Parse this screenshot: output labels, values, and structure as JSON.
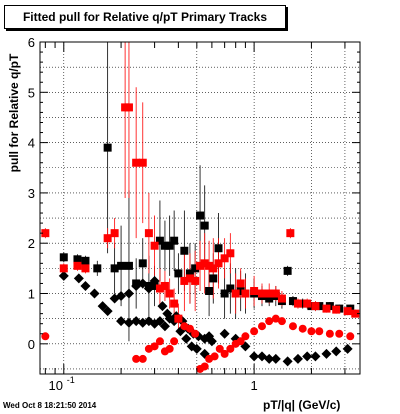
{
  "title": "Fitted pull for Relative q/pT  Primary Tracks",
  "footer": "Wed Oct  8 18:21:50 2014",
  "chart_data": {
    "type": "scatter",
    "title": "Fitted pull for Relative q/pT  Primary Tracks",
    "xlabel": "pT/|q| (GeV/c)",
    "ylabel": "pull for Relative q/pT",
    "x_scale": "log",
    "xlim": [
      0.075,
      3.6
    ],
    "ylim": [
      -0.6,
      6
    ],
    "x_tick_labels": [
      {
        "v": 0.1,
        "label": "10^-1"
      },
      {
        "v": 1,
        "label": "1"
      }
    ],
    "y_ticks": [
      0,
      1,
      2,
      3,
      4,
      5,
      6
    ],
    "grid": true,
    "colors": {
      "black_series": "#000000",
      "red_series": "#ff0000"
    },
    "series": [
      {
        "marker": "square",
        "color": "#000000",
        "points": [
          [
            0.1,
            1.72,
            0.1
          ],
          [
            0.118,
            1.68,
            0.1
          ],
          [
            0.13,
            1.65,
            0.1
          ],
          [
            0.15,
            1.5,
            0.15
          ],
          [
            0.17,
            3.9,
            2.1
          ],
          [
            0.185,
            1.5,
            0.5
          ],
          [
            0.2,
            1.55,
            0.8
          ],
          [
            0.22,
            1.55,
            1.5
          ],
          [
            0.24,
            1.2,
            0.5
          ],
          [
            0.26,
            1.6,
            0.5
          ],
          [
            0.28,
            1.15,
            0.6
          ],
          [
            0.3,
            1.15,
            0.4
          ],
          [
            0.32,
            2.05,
            0.8
          ],
          [
            0.34,
            1.95,
            0.5
          ],
          [
            0.36,
            1.95,
            0.6
          ],
          [
            0.38,
            2.05,
            0.6
          ],
          [
            0.4,
            1.4,
            0.4
          ],
          [
            0.43,
            1.85,
            0.8
          ],
          [
            0.46,
            1.4,
            0.6
          ],
          [
            0.49,
            1.5,
            0.5
          ],
          [
            0.52,
            2.55,
            1.0
          ],
          [
            0.55,
            2.35,
            0.8
          ],
          [
            0.58,
            1.05,
            0.5
          ],
          [
            0.61,
            1.3,
            0.5
          ],
          [
            0.65,
            1.9,
            0.7
          ],
          [
            0.7,
            1.0,
            0.5
          ],
          [
            0.75,
            1.1,
            0.5
          ],
          [
            0.8,
            1.0,
            0.5
          ],
          [
            0.85,
            1.05,
            0.4
          ],
          [
            0.9,
            1.0,
            0.4
          ],
          [
            1.0,
            1.0,
            0.3
          ],
          [
            1.1,
            0.95,
            0.2
          ],
          [
            1.2,
            0.9,
            0.15
          ],
          [
            1.3,
            0.95,
            0.2
          ],
          [
            1.4,
            0.85,
            0.15
          ],
          [
            1.5,
            1.45,
            0.1
          ],
          [
            1.6,
            0.85,
            0.1
          ],
          [
            1.8,
            0.8,
            0.1
          ],
          [
            2.0,
            0.75,
            0.08
          ],
          [
            2.2,
            0.75,
            0.08
          ],
          [
            2.5,
            0.75,
            0.08
          ],
          [
            2.8,
            0.7,
            0.08
          ],
          [
            3.2,
            0.7,
            0.08
          ]
        ]
      },
      {
        "marker": "diamond",
        "color": "#000000",
        "points": [
          [
            0.1,
            1.35,
            0.05
          ],
          [
            0.12,
            1.3,
            0.05
          ],
          [
            0.13,
            1.15,
            0.05
          ],
          [
            0.145,
            1.0,
            0.05
          ],
          [
            0.16,
            0.75,
            0.05
          ],
          [
            0.17,
            0.65,
            0.05
          ],
          [
            0.185,
            0.9,
            0.05
          ],
          [
            0.2,
            0.95,
            0.05
          ],
          [
            0.22,
            1.0,
            0.05
          ],
          [
            0.24,
            1.15,
            0.05
          ],
          [
            0.26,
            1.2,
            0.05
          ],
          [
            0.28,
            1.1,
            0.05
          ],
          [
            0.3,
            1.25,
            0.05
          ],
          [
            0.33,
            0.75,
            0.05
          ],
          [
            0.35,
            0.6,
            0.05
          ],
          [
            0.38,
            0.45,
            0.05
          ],
          [
            0.41,
            0.25,
            0.05
          ],
          [
            0.44,
            0.1,
            0.05
          ],
          [
            0.47,
            -0.05,
            0.05
          ],
          [
            0.5,
            -0.1,
            0.05
          ],
          [
            0.55,
            -0.2,
            0.05
          ],
          [
            0.6,
            0.05,
            0.05
          ],
          [
            0.7,
            0.2,
            0.05
          ],
          [
            0.8,
            0.1,
            0.05
          ],
          [
            0.9,
            -0.05,
            0.05
          ],
          [
            1.0,
            -0.25,
            0.05
          ],
          [
            1.1,
            -0.25,
            0.05
          ],
          [
            1.2,
            -0.3,
            0.05
          ],
          [
            1.3,
            -0.3,
            0.05
          ],
          [
            1.5,
            -0.35,
            0.05
          ],
          [
            1.7,
            -0.3,
            0.05
          ],
          [
            1.9,
            -0.25,
            0.05
          ],
          [
            2.1,
            -0.25,
            0.05
          ],
          [
            2.4,
            -0.2,
            0.05
          ],
          [
            2.7,
            -0.15,
            0.05
          ],
          [
            3.1,
            -0.1,
            0.05
          ]
        ]
      },
      {
        "marker": "diamond",
        "color": "#000000",
        "points": [
          [
            0.2,
            0.45,
            0.05
          ],
          [
            0.22,
            0.42,
            0.05
          ],
          [
            0.24,
            0.45,
            0.05
          ],
          [
            0.26,
            0.42,
            0.05
          ],
          [
            0.28,
            0.45,
            0.05
          ],
          [
            0.3,
            0.4,
            0.05
          ],
          [
            0.32,
            0.45,
            0.05
          ],
          [
            0.34,
            0.35,
            0.05
          ],
          [
            0.36,
            0.5,
            0.05
          ],
          [
            0.39,
            0.55,
            0.05
          ],
          [
            0.42,
            0.45,
            0.05
          ],
          [
            0.45,
            0.3,
            0.05
          ],
          [
            0.48,
            0.2,
            0.05
          ],
          [
            0.51,
            0.15,
            0.05
          ],
          [
            0.55,
            0.1,
            0.05
          ],
          [
            0.58,
            0.15,
            0.05
          ]
        ]
      },
      {
        "marker": "square",
        "color": "#ff0000",
        "points": [
          [
            0.08,
            2.2,
            0.1
          ],
          [
            0.1,
            1.5,
            0.1
          ],
          [
            0.118,
            1.55,
            0.1
          ],
          [
            0.13,
            1.5,
            0.1
          ],
          [
            0.17,
            2.1,
            0.2
          ],
          [
            0.185,
            2.2,
            0.3
          ],
          [
            0.21,
            4.7,
            1.8
          ],
          [
            0.22,
            4.7,
            1.8
          ],
          [
            0.24,
            3.6,
            1.5
          ],
          [
            0.26,
            3.6,
            1.2
          ],
          [
            0.28,
            2.2,
            0.8
          ],
          [
            0.3,
            1.95,
            0.6
          ],
          [
            0.32,
            1.1,
            0.4
          ],
          [
            0.34,
            1.15,
            0.3
          ],
          [
            0.36,
            1.0,
            0.3
          ],
          [
            0.38,
            0.8,
            0.3
          ],
          [
            0.4,
            0.5,
            0.3
          ],
          [
            0.43,
            1.25,
            0.6
          ],
          [
            0.46,
            1.3,
            0.5
          ],
          [
            0.49,
            1.25,
            0.6
          ],
          [
            0.52,
            1.55,
            0.5
          ],
          [
            0.55,
            1.6,
            0.6
          ],
          [
            0.58,
            1.55,
            0.5
          ],
          [
            0.61,
            1.5,
            0.6
          ],
          [
            0.65,
            1.6,
            0.5
          ],
          [
            0.7,
            1.7,
            0.4
          ],
          [
            0.75,
            1.8,
            0.4
          ],
          [
            0.8,
            1.0,
            0.4
          ],
          [
            0.85,
            1.2,
            0.3
          ],
          [
            0.9,
            1.0,
            0.3
          ],
          [
            1.0,
            1.05,
            0.3
          ],
          [
            1.1,
            1.0,
            0.2
          ],
          [
            1.2,
            1.0,
            0.2
          ],
          [
            1.3,
            1.0,
            0.15
          ],
          [
            1.4,
            0.9,
            0.15
          ],
          [
            1.55,
            2.2,
            0.1
          ],
          [
            1.7,
            0.8,
            0.1
          ],
          [
            1.9,
            0.8,
            0.1
          ],
          [
            2.1,
            0.75,
            0.1
          ],
          [
            2.4,
            0.7,
            0.08
          ],
          [
            2.7,
            0.68,
            0.08
          ],
          [
            3.1,
            0.65,
            0.08
          ],
          [
            3.4,
            0.6,
            0.08
          ]
        ]
      },
      {
        "marker": "circle",
        "color": "#ff0000",
        "points": [
          [
            0.08,
            0.15,
            0.05
          ],
          [
            0.24,
            -0.3,
            0.05
          ],
          [
            0.26,
            -0.3,
            0.05
          ],
          [
            0.28,
            -0.1,
            0.05
          ],
          [
            0.3,
            -0.05,
            0.05
          ],
          [
            0.32,
            0.05,
            0.05
          ],
          [
            0.34,
            -0.15,
            0.05
          ],
          [
            0.36,
            -0.1,
            0.05
          ],
          [
            0.38,
            0.05,
            0.05
          ],
          [
            0.4,
            0.5,
            0.05
          ],
          [
            0.43,
            0.35,
            0.05
          ],
          [
            0.46,
            0.3,
            0.05
          ],
          [
            0.49,
            0.2,
            0.05
          ],
          [
            0.52,
            -0.5,
            0.05
          ],
          [
            0.55,
            -0.45,
            0.05
          ],
          [
            0.58,
            -0.3,
            0.05
          ],
          [
            0.62,
            -0.25,
            0.05
          ],
          [
            0.66,
            -0.1,
            0.05
          ],
          [
            0.7,
            -0.2,
            0.05
          ],
          [
            0.75,
            -0.1,
            0.05
          ],
          [
            0.8,
            0.0,
            0.05
          ],
          [
            0.85,
            0.05,
            0.05
          ],
          [
            0.9,
            0.15,
            0.05
          ],
          [
            1.0,
            0.25,
            0.05
          ],
          [
            1.1,
            0.35,
            0.05
          ],
          [
            1.2,
            0.45,
            0.05
          ],
          [
            1.3,
            0.5,
            0.05
          ],
          [
            1.4,
            0.45,
            0.05
          ],
          [
            1.6,
            0.35,
            0.05
          ],
          [
            1.8,
            0.3,
            0.05
          ],
          [
            2.0,
            0.25,
            0.05
          ],
          [
            2.2,
            0.25,
            0.05
          ],
          [
            2.5,
            0.2,
            0.05
          ],
          [
            2.8,
            0.2,
            0.05
          ],
          [
            3.2,
            0.15,
            0.05
          ]
        ]
      }
    ]
  }
}
